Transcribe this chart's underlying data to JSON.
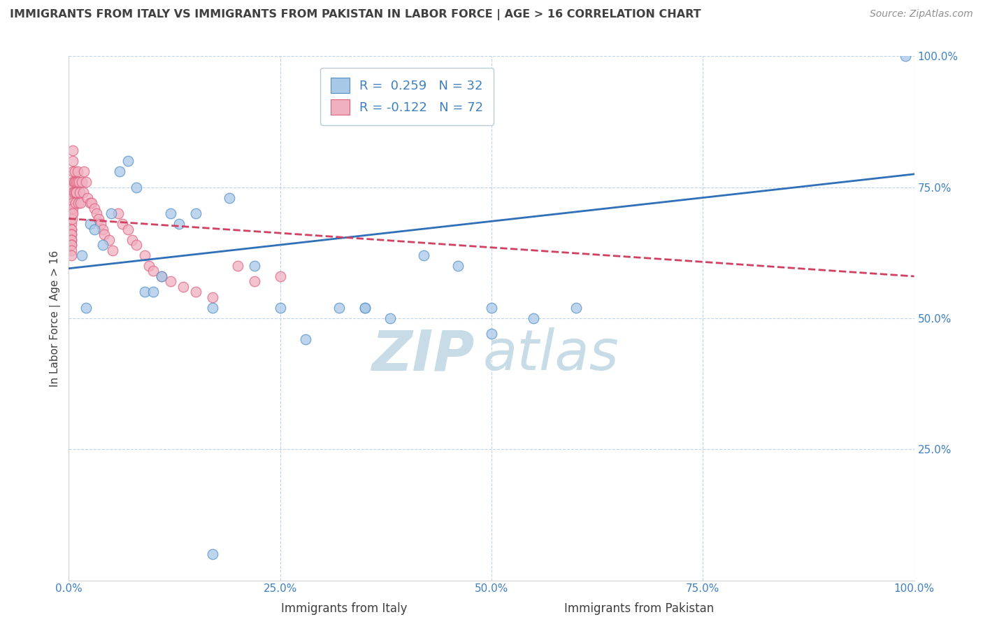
{
  "title": "IMMIGRANTS FROM ITALY VS IMMIGRANTS FROM PAKISTAN IN LABOR FORCE | AGE > 16 CORRELATION CHART",
  "source": "Source: ZipAtlas.com",
  "xlabel_italy": "Immigrants from Italy",
  "xlabel_pakistan": "Immigrants from Pakistan",
  "ylabel": "In Labor Force | Age > 16",
  "italy_R": 0.259,
  "italy_N": 32,
  "pakistan_R": -0.122,
  "pakistan_N": 72,
  "italy_color": "#a8c8e8",
  "italy_edge_color": "#5090c8",
  "pakistan_color": "#f0b0c0",
  "pakistan_edge_color": "#e06080",
  "italy_line_color": "#3070b8",
  "pakistan_line_color": "#d04060",
  "background_color": "#ffffff",
  "grid_color": "#c0d4e8",
  "title_color": "#404040",
  "axis_tick_color": "#4080c0",
  "xlim": [
    0.0,
    1.0
  ],
  "ylim": [
    0.0,
    1.0
  ],
  "xticks": [
    0.0,
    0.25,
    0.5,
    0.75,
    1.0
  ],
  "yticks": [
    0.25,
    0.5,
    0.75,
    1.0
  ],
  "xticklabels": [
    "0.0%",
    "25.0%",
    "50.0%",
    "75.0%",
    "100.0%"
  ],
  "yticklabels": [
    "25.0%",
    "50.0%",
    "75.0%",
    "100.0%"
  ],
  "italy_scatter_x": [
    0.015,
    0.02,
    0.025,
    0.03,
    0.04,
    0.05,
    0.06,
    0.07,
    0.08,
    0.09,
    0.1,
    0.11,
    0.12,
    0.13,
    0.15,
    0.17,
    0.19,
    0.22,
    0.25,
    0.28,
    0.32,
    0.35,
    0.38,
    0.42,
    0.46,
    0.5,
    0.55,
    0.6,
    0.5,
    0.35,
    0.17,
    0.99
  ],
  "italy_scatter_y": [
    0.62,
    0.52,
    0.68,
    0.67,
    0.64,
    0.7,
    0.78,
    0.8,
    0.75,
    0.55,
    0.55,
    0.58,
    0.7,
    0.68,
    0.7,
    0.52,
    0.73,
    0.6,
    0.52,
    0.46,
    0.52,
    0.52,
    0.5,
    0.62,
    0.6,
    0.52,
    0.5,
    0.52,
    0.47,
    0.52,
    0.05,
    1.0
  ],
  "pakistan_scatter_x": [
    0.003,
    0.003,
    0.003,
    0.003,
    0.003,
    0.003,
    0.003,
    0.003,
    0.003,
    0.003,
    0.003,
    0.004,
    0.004,
    0.004,
    0.004,
    0.004,
    0.004,
    0.005,
    0.005,
    0.005,
    0.005,
    0.005,
    0.005,
    0.005,
    0.005,
    0.005,
    0.005,
    0.006,
    0.006,
    0.007,
    0.007,
    0.008,
    0.008,
    0.009,
    0.009,
    0.01,
    0.01,
    0.011,
    0.012,
    0.013,
    0.014,
    0.015,
    0.017,
    0.018,
    0.02,
    0.022,
    0.025,
    0.027,
    0.03,
    0.033,
    0.035,
    0.038,
    0.04,
    0.042,
    0.048,
    0.052,
    0.058,
    0.063,
    0.07,
    0.075,
    0.08,
    0.09,
    0.095,
    0.1,
    0.11,
    0.12,
    0.135,
    0.15,
    0.17,
    0.2,
    0.25,
    0.22
  ],
  "pakistan_scatter_y": [
    0.68,
    0.67,
    0.67,
    0.66,
    0.66,
    0.65,
    0.65,
    0.64,
    0.64,
    0.63,
    0.62,
    0.74,
    0.73,
    0.72,
    0.71,
    0.7,
    0.69,
    0.82,
    0.8,
    0.78,
    0.76,
    0.75,
    0.74,
    0.73,
    0.72,
    0.71,
    0.7,
    0.76,
    0.74,
    0.78,
    0.76,
    0.74,
    0.72,
    0.76,
    0.74,
    0.78,
    0.76,
    0.72,
    0.76,
    0.74,
    0.72,
    0.76,
    0.74,
    0.78,
    0.76,
    0.73,
    0.72,
    0.72,
    0.71,
    0.7,
    0.69,
    0.68,
    0.67,
    0.66,
    0.65,
    0.63,
    0.7,
    0.68,
    0.67,
    0.65,
    0.64,
    0.62,
    0.6,
    0.59,
    0.58,
    0.57,
    0.56,
    0.55,
    0.54,
    0.6,
    0.58,
    0.57
  ],
  "italy_trend_x0": 0.0,
  "italy_trend_x1": 1.0,
  "italy_trend_y0": 0.595,
  "italy_trend_y1": 0.775,
  "pakistan_trend_x0": 0.0,
  "pakistan_trend_x1": 1.0,
  "pakistan_trend_y0": 0.69,
  "pakistan_trend_y1": 0.58,
  "watermark_zip": "ZIP",
  "watermark_atlas": "atlas",
  "watermark_color": "#c8dce8",
  "legend_italy_label": "R =  0.259   N = 32",
  "legend_pakistan_label": "R = -0.122   N = 72"
}
